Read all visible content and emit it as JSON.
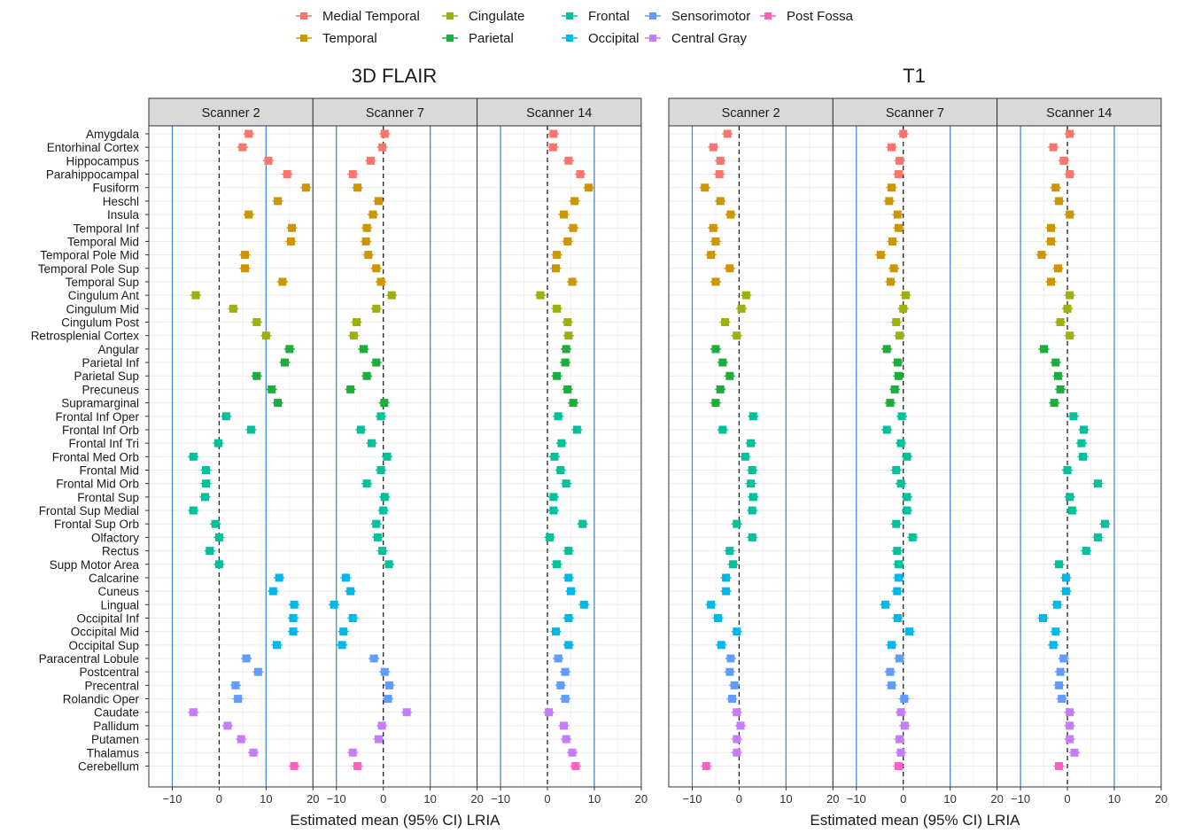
{
  "legend": [
    {
      "name": "Medial Temporal",
      "color": "#F8766D"
    },
    {
      "name": "Temporal",
      "color": "#CD9600"
    },
    {
      "name": "Cingulate",
      "color": "#9DB010"
    },
    {
      "name": "Parietal",
      "color": "#1CAD3C"
    },
    {
      "name": "Frontal",
      "color": "#00C19A"
    },
    {
      "name": "Occipital",
      "color": "#00B8E7"
    },
    {
      "name": "Sensorimotor",
      "color": "#619CFF"
    },
    {
      "name": "Central Gray",
      "color": "#C77CFF"
    },
    {
      "name": "Post Fossa",
      "color": "#FF61C3"
    }
  ],
  "chart_data": {
    "type": "scatter",
    "xlabel": "Estimated mean (95% CI) LRIA",
    "xlim": [
      -15,
      20
    ],
    "xticks": [
      -10,
      0,
      10,
      20
    ],
    "reference_lines": {
      "dashed": 0,
      "solid": [
        -10,
        10
      ]
    },
    "grid": true,
    "legend_position": "top",
    "scanners": [
      "Scanner 2",
      "Scanner 7",
      "Scanner 14"
    ],
    "regions": [
      {
        "name": "Amygdala",
        "group": 0
      },
      {
        "name": "Entorhinal Cortex",
        "group": 0
      },
      {
        "name": "Hippocampus",
        "group": 0
      },
      {
        "name": "Parahippocampal",
        "group": 0
      },
      {
        "name": "Fusiform",
        "group": 1
      },
      {
        "name": "Heschl",
        "group": 1
      },
      {
        "name": "Insula",
        "group": 1
      },
      {
        "name": "Temporal Inf",
        "group": 1
      },
      {
        "name": "Temporal Mid",
        "group": 1
      },
      {
        "name": "Temporal Pole Mid",
        "group": 1
      },
      {
        "name": "Temporal Pole Sup",
        "group": 1
      },
      {
        "name": "Temporal Sup",
        "group": 1
      },
      {
        "name": "Cingulum Ant",
        "group": 2
      },
      {
        "name": "Cingulum Mid",
        "group": 2
      },
      {
        "name": "Cingulum Post",
        "group": 2
      },
      {
        "name": "Retrosplenial Cortex",
        "group": 2
      },
      {
        "name": "Angular",
        "group": 3
      },
      {
        "name": "Parietal Inf",
        "group": 3
      },
      {
        "name": "Parietal Sup",
        "group": 3
      },
      {
        "name": "Precuneus",
        "group": 3
      },
      {
        "name": "Supramarginal",
        "group": 3
      },
      {
        "name": "Frontal Inf Oper",
        "group": 4
      },
      {
        "name": "Frontal Inf Orb",
        "group": 4
      },
      {
        "name": "Frontal Inf Tri",
        "group": 4
      },
      {
        "name": "Frontal Med Orb",
        "group": 4
      },
      {
        "name": "Frontal Mid",
        "group": 4
      },
      {
        "name": "Frontal Mid Orb",
        "group": 4
      },
      {
        "name": "Frontal Sup",
        "group": 4
      },
      {
        "name": "Frontal Sup Medial",
        "group": 4
      },
      {
        "name": "Frontal Sup Orb",
        "group": 4
      },
      {
        "name": "Olfactory",
        "group": 4
      },
      {
        "name": "Rectus",
        "group": 4
      },
      {
        "name": "Supp Motor Area",
        "group": 4
      },
      {
        "name": "Calcarine",
        "group": 5
      },
      {
        "name": "Cuneus",
        "group": 5
      },
      {
        "name": "Lingual",
        "group": 5
      },
      {
        "name": "Occipital Inf",
        "group": 5
      },
      {
        "name": "Occipital Mid",
        "group": 5
      },
      {
        "name": "Occipital Sup",
        "group": 5
      },
      {
        "name": "Paracentral Lobule",
        "group": 6
      },
      {
        "name": "Postcentral",
        "group": 6
      },
      {
        "name": "Precentral",
        "group": 6
      },
      {
        "name": "Rolandic Oper",
        "group": 6
      },
      {
        "name": "Caudate",
        "group": 7
      },
      {
        "name": "Pallidum",
        "group": 7
      },
      {
        "name": "Putamen",
        "group": 7
      },
      {
        "name": "Thalamus",
        "group": 7
      },
      {
        "name": "Cerebellum",
        "group": 8
      }
    ],
    "panels": [
      {
        "title": "3D FLAIR",
        "values": [
          [
            6.3,
            0.3,
            1.3
          ],
          [
            5.0,
            -0.2,
            1.2
          ],
          [
            10.5,
            -2.7,
            4.5
          ],
          [
            14.5,
            -6.5,
            7.0
          ],
          [
            18.5,
            -5.5,
            8.8
          ],
          [
            12.5,
            -1.0,
            5.8
          ],
          [
            6.3,
            -2.2,
            3.5
          ],
          [
            15.5,
            -3.5,
            5.5
          ],
          [
            15.3,
            -3.7,
            4.3
          ],
          [
            5.5,
            -3.2,
            2.0
          ],
          [
            5.5,
            -1.5,
            1.8
          ],
          [
            13.5,
            -0.5,
            5.3
          ],
          [
            -5.0,
            1.8,
            -1.5
          ],
          [
            3.0,
            -1.5,
            2.0
          ],
          [
            8.0,
            -5.7,
            4.3
          ],
          [
            10.0,
            -6.3,
            4.5
          ],
          [
            15.0,
            -4.2,
            4.0
          ],
          [
            14.0,
            -1.5,
            3.8
          ],
          [
            8.0,
            -3.5,
            2.0
          ],
          [
            11.2,
            -7.0,
            4.3
          ],
          [
            12.5,
            0.2,
            5.5
          ],
          [
            1.5,
            -0.5,
            2.3
          ],
          [
            6.8,
            -4.8,
            6.3
          ],
          [
            -0.2,
            -2.5,
            3.0
          ],
          [
            -5.5,
            0.8,
            1.5
          ],
          [
            -2.8,
            -0.5,
            2.8
          ],
          [
            -2.8,
            -3.5,
            4.0
          ],
          [
            -3.0,
            0.3,
            1.3
          ],
          [
            -5.5,
            0.0,
            1.3
          ],
          [
            -0.8,
            -1.5,
            7.5
          ],
          [
            0.0,
            -1.2,
            0.5
          ],
          [
            -2.0,
            -0.2,
            4.5
          ],
          [
            0.0,
            1.2,
            2.0
          ],
          [
            12.8,
            -8.0,
            4.5
          ],
          [
            11.5,
            -7.0,
            5.0
          ],
          [
            16.0,
            -10.5,
            7.8
          ],
          [
            15.8,
            -6.5,
            4.5
          ],
          [
            15.8,
            -8.5,
            1.8
          ],
          [
            12.3,
            -8.8,
            4.5
          ],
          [
            5.8,
            -2.0,
            2.3
          ],
          [
            8.3,
            0.3,
            3.8
          ],
          [
            3.5,
            1.3,
            2.8
          ],
          [
            4.0,
            1.0,
            3.8
          ],
          [
            -5.5,
            5.0,
            0.3
          ],
          [
            1.8,
            -0.3,
            3.5
          ],
          [
            4.7,
            -1.0,
            4.0
          ],
          [
            7.3,
            -6.5,
            5.3
          ],
          [
            16.0,
            -5.5,
            6.0
          ]
        ]
      },
      {
        "title": "T1",
        "values": [
          [
            -2.5,
            0.0,
            0.5
          ],
          [
            -5.5,
            -2.5,
            -3.0
          ],
          [
            -4.0,
            -0.8,
            -0.8
          ],
          [
            -4.2,
            -1.0,
            0.5
          ],
          [
            -7.3,
            -2.5,
            -2.5
          ],
          [
            -4.0,
            -3.0,
            -1.8
          ],
          [
            -1.8,
            -1.2,
            0.5
          ],
          [
            -5.5,
            -1.0,
            -3.5
          ],
          [
            -5.0,
            -2.3,
            -3.5
          ],
          [
            -6.0,
            -4.8,
            -5.5
          ],
          [
            -2.0,
            -2.0,
            -2.0
          ],
          [
            -5.0,
            -2.7,
            -3.5
          ],
          [
            1.5,
            0.5,
            0.5
          ],
          [
            0.5,
            0.0,
            0.0
          ],
          [
            -3.0,
            -1.5,
            -1.5
          ],
          [
            -0.5,
            -0.8,
            0.5
          ],
          [
            -5.0,
            -3.5,
            -5.0
          ],
          [
            -3.5,
            -1.2,
            -2.5
          ],
          [
            -2.0,
            -1.0,
            -2.0
          ],
          [
            -4.0,
            -1.8,
            -1.5
          ],
          [
            -5.0,
            -2.8,
            -2.8
          ],
          [
            3.0,
            -0.3,
            1.3
          ],
          [
            -3.5,
            -3.5,
            3.5
          ],
          [
            2.5,
            -0.5,
            3.0
          ],
          [
            1.3,
            0.8,
            3.3
          ],
          [
            2.8,
            -1.5,
            0.0
          ],
          [
            2.5,
            -0.5,
            6.5
          ],
          [
            3.0,
            0.8,
            0.5
          ],
          [
            2.8,
            0.8,
            1.0
          ],
          [
            -0.5,
            -1.5,
            8.0
          ],
          [
            2.8,
            2.0,
            6.5
          ],
          [
            -2.0,
            -1.3,
            4.0
          ],
          [
            -1.3,
            -1.0,
            -1.8
          ],
          [
            -2.8,
            -1.0,
            -0.3
          ],
          [
            -2.8,
            -1.3,
            -0.3
          ],
          [
            -6.0,
            -3.8,
            -2.2
          ],
          [
            -4.5,
            -1.2,
            -5.2
          ],
          [
            -0.5,
            1.3,
            -2.5
          ],
          [
            -3.8,
            -2.5,
            -3.0
          ],
          [
            -1.8,
            -0.8,
            -0.8
          ],
          [
            -2.0,
            -2.8,
            -1.5
          ],
          [
            -1.0,
            -2.5,
            -1.8
          ],
          [
            -1.5,
            0.2,
            -1.2
          ],
          [
            -0.5,
            -0.5,
            0.5
          ],
          [
            0.3,
            0.3,
            0.5
          ],
          [
            -0.5,
            -0.8,
            0.5
          ],
          [
            -0.5,
            -0.5,
            1.5
          ],
          [
            -7.0,
            -1.0,
            -1.8
          ]
        ]
      }
    ]
  }
}
